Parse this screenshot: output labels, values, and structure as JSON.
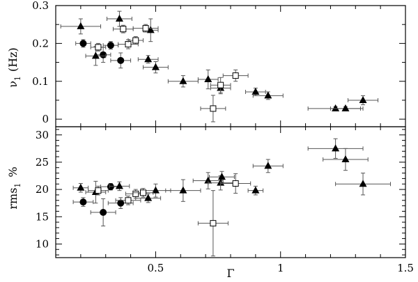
{
  "chart_data": [
    {
      "id": "top",
      "type": "scatter",
      "ylabel_main": "ν",
      "ylabel_sub": "1",
      "ylabel_unit": "(Hz)",
      "xlim": [
        0.1,
        1.5
      ],
      "ylim": [
        -0.02,
        0.3
      ],
      "xticks": [
        0.5,
        1,
        1.5
      ],
      "xtick_labels": [
        "0.5",
        "1",
        "1.5"
      ],
      "yticks": [
        0,
        0.1,
        0.2,
        0.3
      ],
      "ytick_labels": [
        "0",
        "0.1",
        "0.2",
        "0.3"
      ],
      "series": [
        {
          "marker": "circle",
          "points": [
            {
              "x": 0.21,
              "y": 0.2,
              "xerr": 0.03,
              "yerr": 0.01
            },
            {
              "x": 0.29,
              "y": 0.17,
              "xerr": 0.03,
              "yerr": 0.02
            },
            {
              "x": 0.32,
              "y": 0.195,
              "xerr": 0.03,
              "yerr": 0.01
            },
            {
              "x": 0.36,
              "y": 0.155,
              "xerr": 0.04,
              "yerr": 0.02
            }
          ]
        },
        {
          "marker": "triangle",
          "points": [
            {
              "x": 0.2,
              "y": 0.245,
              "xerr": 0.08,
              "yerr": 0.02
            },
            {
              "x": 0.26,
              "y": 0.167,
              "xerr": 0.04,
              "yerr": 0.025
            },
            {
              "x": 0.355,
              "y": 0.265,
              "xerr": 0.05,
              "yerr": 0.02
            },
            {
              "x": 0.47,
              "y": 0.158,
              "xerr": 0.04,
              "yerr": 0.01
            },
            {
              "x": 0.48,
              "y": 0.235,
              "xerr": 0.03,
              "yerr": 0.03
            },
            {
              "x": 0.5,
              "y": 0.137,
              "xerr": 0.05,
              "yerr": 0.015
            },
            {
              "x": 0.61,
              "y": 0.1,
              "xerr": 0.06,
              "yerr": 0.015
            },
            {
              "x": 0.71,
              "y": 0.105,
              "xerr": 0.04,
              "yerr": 0.025
            },
            {
              "x": 0.76,
              "y": 0.082,
              "xerr": 0.04,
              "yerr": 0.015
            },
            {
              "x": 0.9,
              "y": 0.072,
              "xerr": 0.04,
              "yerr": 0.01
            },
            {
              "x": 0.95,
              "y": 0.062,
              "xerr": 0.06,
              "yerr": 0.01
            },
            {
              "x": 1.22,
              "y": 0.028,
              "xerr": 0.11,
              "yerr": 0.005
            },
            {
              "x": 1.26,
              "y": 0.028,
              "xerr": 0.06,
              "yerr": 0.005
            },
            {
              "x": 1.33,
              "y": 0.05,
              "xerr": 0.06,
              "yerr": 0.012
            }
          ]
        },
        {
          "marker": "square",
          "points": [
            {
              "x": 0.27,
              "y": 0.19,
              "xerr": 0.03,
              "yerr": 0.01
            },
            {
              "x": 0.37,
              "y": 0.238,
              "xerr": 0.04,
              "yerr": 0.01
            },
            {
              "x": 0.39,
              "y": 0.198,
              "xerr": 0.04,
              "yerr": 0.012
            },
            {
              "x": 0.42,
              "y": 0.208,
              "xerr": 0.03,
              "yerr": 0.01
            },
            {
              "x": 0.46,
              "y": 0.24,
              "xerr": 0.05,
              "yerr": 0.01
            },
            {
              "x": 0.73,
              "y": 0.028,
              "xerr": 0.05,
              "yerr": 0.035
            },
            {
              "x": 0.76,
              "y": 0.09,
              "xerr": 0.04,
              "yerr": 0.02
            },
            {
              "x": 0.82,
              "y": 0.115,
              "xerr": 0.05,
              "yerr": 0.015
            }
          ]
        }
      ]
    },
    {
      "id": "bottom",
      "type": "scatter",
      "xlabel": "Γ",
      "ylabel_main": "rms",
      "ylabel_sub": "1",
      "ylabel_unit": "%",
      "xlim": [
        0.1,
        1.5
      ],
      "ylim": [
        7.5,
        31.5
      ],
      "xticks": [
        0.5,
        1,
        1.5
      ],
      "xtick_labels": [
        "0.5",
        "1",
        "1.5"
      ],
      "yticks": [
        10,
        15,
        20,
        25,
        30
      ],
      "ytick_labels": [
        "10",
        "15",
        "20",
        "25",
        "30"
      ],
      "series": [
        {
          "marker": "circle",
          "points": [
            {
              "x": 0.21,
              "y": 17.7,
              "xerr": 0.04,
              "yerr": 0.8
            },
            {
              "x": 0.29,
              "y": 15.8,
              "xerr": 0.05,
              "yerr": 2.5
            },
            {
              "x": 0.32,
              "y": 20.5,
              "xerr": 0.04,
              "yerr": 0.6
            },
            {
              "x": 0.36,
              "y": 17.5,
              "xerr": 0.05,
              "yerr": 1.0
            }
          ]
        },
        {
          "marker": "triangle",
          "points": [
            {
              "x": 0.2,
              "y": 20.3,
              "xerr": 0.03,
              "yerr": 0.8
            },
            {
              "x": 0.26,
              "y": 19.5,
              "xerr": 0.04,
              "yerr": 2.0
            },
            {
              "x": 0.355,
              "y": 20.6,
              "xerr": 0.04,
              "yerr": 0.8
            },
            {
              "x": 0.47,
              "y": 18.4,
              "xerr": 0.05,
              "yerr": 0.8
            },
            {
              "x": 0.5,
              "y": 19.8,
              "xerr": 0.06,
              "yerr": 1.2
            },
            {
              "x": 0.61,
              "y": 19.8,
              "xerr": 0.07,
              "yerr": 2.0
            },
            {
              "x": 0.71,
              "y": 21.6,
              "xerr": 0.06,
              "yerr": 1.5
            },
            {
              "x": 0.76,
              "y": 21.2,
              "xerr": 0.05,
              "yerr": 1.3
            },
            {
              "x": 0.765,
              "y": 22.3,
              "xerr": 0.05,
              "yerr": 1.0
            },
            {
              "x": 0.9,
              "y": 19.8,
              "xerr": 0.03,
              "yerr": 0.8
            },
            {
              "x": 0.95,
              "y": 24.3,
              "xerr": 0.06,
              "yerr": 1.2
            },
            {
              "x": 1.22,
              "y": 27.5,
              "xerr": 0.11,
              "yerr": 1.8
            },
            {
              "x": 1.26,
              "y": 25.5,
              "xerr": 0.09,
              "yerr": 2.0
            },
            {
              "x": 1.33,
              "y": 21.0,
              "xerr": 0.11,
              "yerr": 2.0
            }
          ]
        },
        {
          "marker": "square",
          "points": [
            {
              "x": 0.27,
              "y": 19.8,
              "xerr": 0.04,
              "yerr": 0.8
            },
            {
              "x": 0.39,
              "y": 18.0,
              "xerr": 0.05,
              "yerr": 0.8
            },
            {
              "x": 0.42,
              "y": 19.2,
              "xerr": 0.04,
              "yerr": 0.8
            },
            {
              "x": 0.45,
              "y": 19.4,
              "xerr": 0.04,
              "yerr": 0.8
            },
            {
              "x": 0.73,
              "y": 13.8,
              "xerr": 0.06,
              "yerr": 6.0
            },
            {
              "x": 0.82,
              "y": 21.1,
              "xerr": 0.06,
              "yerr": 1.8
            }
          ]
        }
      ]
    }
  ]
}
